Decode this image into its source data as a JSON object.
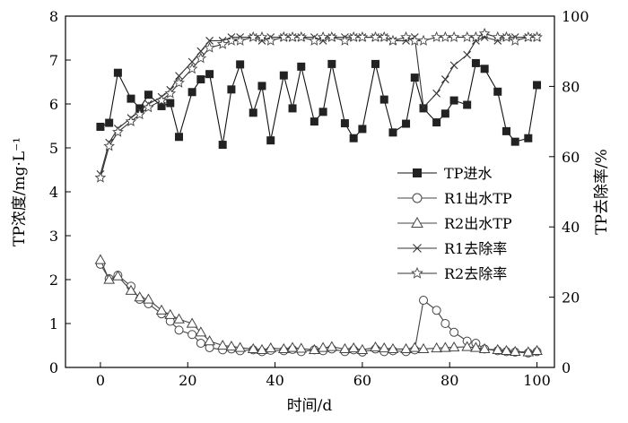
{
  "chart_data": {
    "type": "line",
    "xlabel": "时间/d",
    "ylabel_left": "TP浓度/mg·L⁻¹",
    "ylabel_right": "TP去除率/%",
    "x_ticks": [
      0,
      20,
      40,
      60,
      80,
      100
    ],
    "y_left_ticks": [
      0,
      1,
      2,
      3,
      4,
      5,
      6,
      7,
      8
    ],
    "y_right_ticks": [
      0,
      20,
      40,
      60,
      80,
      100
    ],
    "xlim": [
      -8,
      104
    ],
    "ylim_left": [
      0,
      8
    ],
    "ylim_right": [
      0,
      100
    ],
    "legend_position": "center-right",
    "series": [
      {
        "name": "TP进水",
        "axis": "left",
        "marker": "square-filled",
        "x": [
          0,
          2,
          4,
          7,
          9,
          11,
          14,
          16,
          18,
          21,
          23,
          25,
          28,
          30,
          32,
          35,
          37,
          39,
          42,
          44,
          46,
          49,
          51,
          53,
          56,
          58,
          60,
          63,
          65,
          67,
          70,
          72,
          74,
          77,
          79,
          81,
          84,
          86,
          88,
          91,
          93,
          95,
          98,
          100
        ],
        "values": [
          5.48,
          5.57,
          6.71,
          6.12,
          5.9,
          6.21,
          5.95,
          6.02,
          5.25,
          6.27,
          6.56,
          6.68,
          5.07,
          6.33,
          6.9,
          5.8,
          6.41,
          5.17,
          6.65,
          5.9,
          6.85,
          5.6,
          5.82,
          6.91,
          5.56,
          5.22,
          5.43,
          6.91,
          6.1,
          5.35,
          5.55,
          6.6,
          5.9,
          5.58,
          5.78,
          6.08,
          5.98,
          6.93,
          6.8,
          6.28,
          5.38,
          5.14,
          5.22,
          6.43
        ]
      },
      {
        "name": "R1出水TP",
        "axis": "left",
        "marker": "circle-open",
        "x": [
          0,
          2,
          4,
          7,
          9,
          11,
          14,
          16,
          18,
          21,
          23,
          25,
          28,
          30,
          32,
          35,
          37,
          39,
          42,
          44,
          46,
          49,
          51,
          53,
          56,
          58,
          60,
          63,
          65,
          67,
          70,
          72,
          74,
          77,
          79,
          81,
          84,
          86,
          88,
          91,
          93,
          95,
          98,
          100
        ],
        "values": [
          2.35,
          2.02,
          2.1,
          1.85,
          1.55,
          1.45,
          1.22,
          1.05,
          0.85,
          0.75,
          0.55,
          0.45,
          0.4,
          0.42,
          0.38,
          0.4,
          0.36,
          0.39,
          0.38,
          0.41,
          0.36,
          0.4,
          0.38,
          0.42,
          0.36,
          0.4,
          0.35,
          0.42,
          0.36,
          0.38,
          0.36,
          0.4,
          1.53,
          1.3,
          1.0,
          0.8,
          0.6,
          0.55,
          0.42,
          0.38,
          0.36,
          0.35,
          0.33,
          0.36
        ]
      },
      {
        "name": "R2出水TP",
        "axis": "left",
        "marker": "triangle-open",
        "x": [
          0,
          2,
          4,
          7,
          9,
          11,
          14,
          16,
          18,
          21,
          23,
          25,
          28,
          30,
          32,
          35,
          37,
          39,
          42,
          44,
          46,
          49,
          51,
          53,
          56,
          58,
          60,
          63,
          65,
          67,
          70,
          72,
          74,
          77,
          79,
          81,
          84,
          86,
          88,
          91,
          93,
          95,
          98,
          100
        ],
        "values": [
          2.45,
          2.0,
          2.08,
          1.75,
          1.6,
          1.55,
          1.3,
          1.2,
          1.1,
          1.0,
          0.8,
          0.6,
          0.5,
          0.48,
          0.45,
          0.42,
          0.4,
          0.44,
          0.42,
          0.45,
          0.43,
          0.4,
          0.45,
          0.47,
          0.42,
          0.44,
          0.4,
          0.46,
          0.44,
          0.42,
          0.42,
          0.45,
          0.42,
          0.44,
          0.45,
          0.46,
          0.47,
          0.45,
          0.42,
          0.4,
          0.38,
          0.36,
          0.35,
          0.38
        ]
      },
      {
        "name": "R1去除率",
        "axis": "right",
        "marker": "x",
        "x": [
          0,
          2,
          4,
          7,
          9,
          11,
          14,
          16,
          18,
          21,
          23,
          25,
          28,
          30,
          32,
          35,
          37,
          39,
          42,
          44,
          46,
          49,
          51,
          53,
          56,
          58,
          60,
          63,
          65,
          67,
          70,
          72,
          74,
          77,
          79,
          81,
          84,
          86,
          88,
          91,
          93,
          95,
          98,
          100
        ],
        "values": [
          55,
          64,
          68,
          71,
          73,
          75,
          77,
          79,
          83,
          87,
          90,
          93,
          93,
          94,
          94,
          94,
          93,
          94,
          94,
          94,
          94,
          94,
          93,
          94,
          94,
          94,
          94,
          94,
          94,
          93,
          93,
          94,
          74,
          78,
          82,
          86,
          89,
          93,
          94,
          93,
          94,
          94,
          94,
          94
        ]
      },
      {
        "name": "R2去除率",
        "axis": "right",
        "marker": "star-open",
        "x": [
          0,
          2,
          4,
          7,
          9,
          11,
          14,
          16,
          18,
          21,
          23,
          25,
          28,
          30,
          32,
          35,
          37,
          39,
          42,
          44,
          46,
          49,
          51,
          53,
          56,
          58,
          60,
          63,
          65,
          67,
          70,
          72,
          74,
          77,
          79,
          81,
          84,
          86,
          88,
          91,
          93,
          95,
          98,
          100
        ],
        "values": [
          54,
          63,
          67,
          70,
          72,
          74,
          76,
          78,
          81,
          85,
          88,
          91,
          92,
          93,
          93,
          94,
          94,
          93,
          94,
          94,
          94,
          93,
          94,
          94,
          93,
          94,
          94,
          94,
          94,
          93,
          94,
          93,
          93,
          94,
          94,
          94,
          94,
          94,
          95,
          94,
          94,
          93,
          94,
          94
        ]
      }
    ]
  }
}
